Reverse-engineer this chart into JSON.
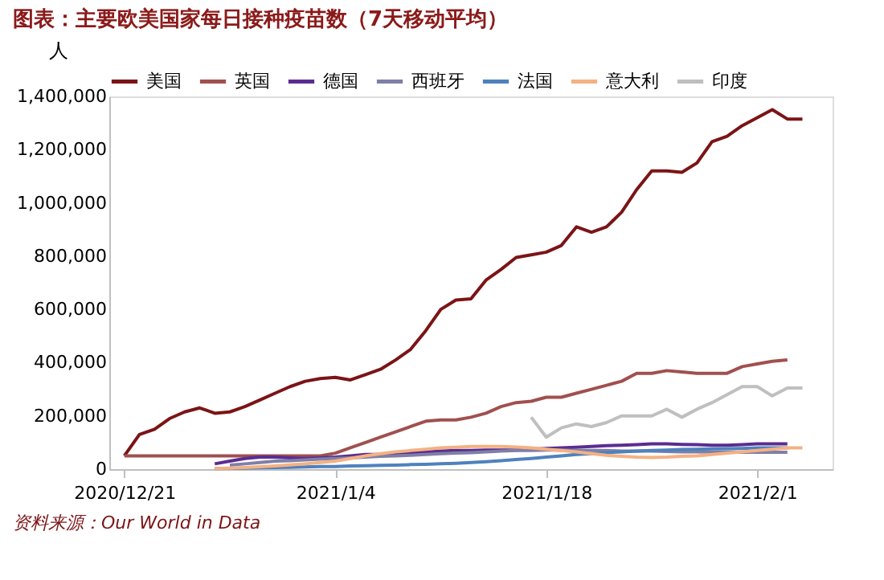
{
  "chart_data": {
    "type": "line",
    "title": "图表：主要欧美国家每日接种疫苗数（7天移动平均）",
    "ylabel": "人",
    "x": [
      "2020-12-21",
      "2020-12-22",
      "2020-12-23",
      "2020-12-24",
      "2020-12-25",
      "2020-12-26",
      "2020-12-27",
      "2020-12-28",
      "2020-12-29",
      "2020-12-30",
      "2020-12-31",
      "2021-01-01",
      "2021-01-02",
      "2021-01-03",
      "2021-01-04",
      "2021-01-05",
      "2021-01-06",
      "2021-01-07",
      "2021-01-08",
      "2021-01-09",
      "2021-01-10",
      "2021-01-11",
      "2021-01-12",
      "2021-01-13",
      "2021-01-14",
      "2021-01-15",
      "2021-01-16",
      "2021-01-17",
      "2021-01-18",
      "2021-01-19",
      "2021-01-20",
      "2021-01-21",
      "2021-01-22",
      "2021-01-23",
      "2021-01-24",
      "2021-01-25",
      "2021-01-26",
      "2021-01-27",
      "2021-01-28",
      "2021-01-29",
      "2021-01-30",
      "2021-01-31",
      "2021-02-01",
      "2021-02-02",
      "2021-02-03",
      "2021-02-04"
    ],
    "series": [
      {
        "name": "美国",
        "color": "#7b1416",
        "values": [
          50000,
          130000,
          150000,
          190000,
          215000,
          230000,
          210000,
          215000,
          235000,
          260000,
          285000,
          310000,
          330000,
          340000,
          345000,
          335000,
          355000,
          375000,
          410000,
          450000,
          520000,
          600000,
          635000,
          640000,
          710000,
          750000,
          795000,
          805000,
          815000,
          840000,
          910000,
          890000,
          910000,
          965000,
          1050000,
          1120000,
          1120000,
          1115000,
          1150000,
          1230000,
          1250000,
          1290000,
          1320000,
          1350000,
          1315000,
          1315000
        ]
      },
      {
        "name": "英国",
        "color": "#a0504f",
        "values": [
          50000,
          50000,
          50000,
          50000,
          50000,
          50000,
          50000,
          50000,
          50000,
          50000,
          50000,
          50000,
          50000,
          50000,
          60000,
          80000,
          100000,
          120000,
          140000,
          160000,
          180000,
          185000,
          185000,
          195000,
          210000,
          235000,
          250000,
          255000,
          270000,
          270000,
          285000,
          300000,
          315000,
          330000,
          360000,
          360000,
          370000,
          365000,
          360000,
          360000,
          360000,
          385000,
          395000,
          405000,
          410000,
          null
        ]
      },
      {
        "name": "德国",
        "color": "#5a2d91",
        "values": [
          null,
          null,
          null,
          null,
          null,
          null,
          20000,
          30000,
          40000,
          45000,
          45000,
          42000,
          40000,
          42000,
          45000,
          50000,
          55000,
          55000,
          60000,
          62000,
          65000,
          68000,
          70000,
          70000,
          72000,
          72000,
          72000,
          75000,
          78000,
          80000,
          82000,
          85000,
          88000,
          90000,
          92000,
          95000,
          95000,
          93000,
          92000,
          90000,
          90000,
          92000,
          95000,
          95000,
          95000,
          null
        ]
      },
      {
        "name": "西班牙",
        "color": "#7f7fa8",
        "values": [
          null,
          null,
          null,
          null,
          null,
          null,
          null,
          15000,
          20000,
          25000,
          30000,
          32000,
          35000,
          38000,
          40000,
          42000,
          45000,
          48000,
          50000,
          52000,
          55000,
          58000,
          60000,
          62000,
          65000,
          68000,
          70000,
          70000,
          72000,
          72000,
          70000,
          70000,
          70000,
          68000,
          68000,
          68000,
          66000,
          65000,
          65000,
          64000,
          64000,
          63000,
          63000,
          63000,
          63000,
          null
        ]
      },
      {
        "name": "法国",
        "color": "#4f81bd",
        "values": [
          null,
          null,
          null,
          null,
          null,
          null,
          2000,
          3000,
          4000,
          5000,
          6000,
          7000,
          8000,
          10000,
          10000,
          12000,
          13000,
          14000,
          15000,
          17000,
          18000,
          20000,
          22000,
          25000,
          28000,
          32000,
          36000,
          40000,
          45000,
          50000,
          55000,
          58000,
          62000,
          65000,
          68000,
          70000,
          72000,
          74000,
          75000,
          76000,
          77000,
          78000,
          80000,
          80000,
          80000,
          null
        ]
      },
      {
        "name": "意大利",
        "color": "#f4b183",
        "values": [
          null,
          null,
          null,
          null,
          null,
          null,
          2000,
          4000,
          6000,
          9000,
          12000,
          16000,
          20000,
          25000,
          30000,
          40000,
          50000,
          58000,
          65000,
          70000,
          75000,
          80000,
          82000,
          85000,
          85000,
          85000,
          83000,
          80000,
          75000,
          70000,
          65000,
          58000,
          52000,
          48000,
          45000,
          44000,
          45000,
          48000,
          50000,
          55000,
          60000,
          65000,
          70000,
          75000,
          80000,
          80000
        ]
      },
      {
        "name": "印度",
        "color": "#bfbfbf",
        "values": [
          null,
          null,
          null,
          null,
          null,
          null,
          null,
          null,
          null,
          null,
          null,
          null,
          null,
          null,
          null,
          null,
          null,
          null,
          null,
          null,
          null,
          null,
          null,
          null,
          null,
          null,
          null,
          195000,
          120000,
          155000,
          170000,
          160000,
          175000,
          200000,
          200000,
          200000,
          225000,
          195000,
          225000,
          250000,
          280000,
          310000,
          310000,
          275000,
          305000,
          305000
        ]
      }
    ],
    "xlim": [
      "2020-12-20",
      "2021-02-06"
    ],
    "xticks": [
      {
        "value": "2020-12-21",
        "label": "2020/12/21"
      },
      {
        "value": "2021-01-04",
        "label": "2021/1/4"
      },
      {
        "value": "2021-01-18",
        "label": "2021/1/18"
      },
      {
        "value": "2021-02-01",
        "label": "2021/2/1"
      }
    ],
    "ylim": [
      0,
      1400000
    ],
    "yticks": [
      0,
      {
        "value": 200000,
        "label": "200,000"
      },
      {
        "value": 400000,
        "label": "400,000"
      },
      {
        "value": 600000,
        "label": "600,000"
      },
      {
        "value": 800000,
        "label": "800,000"
      },
      {
        "value": 1000000,
        "label": "1,000,000"
      },
      {
        "value": 1200000,
        "label": "1,200,000"
      },
      {
        "value": 1400000,
        "label": "1,400,000"
      }
    ],
    "grid": false,
    "legend": "top",
    "marker": "none",
    "line_style": "solid",
    "annotations": [
      "资料来源：Our World in Data"
    ]
  }
}
